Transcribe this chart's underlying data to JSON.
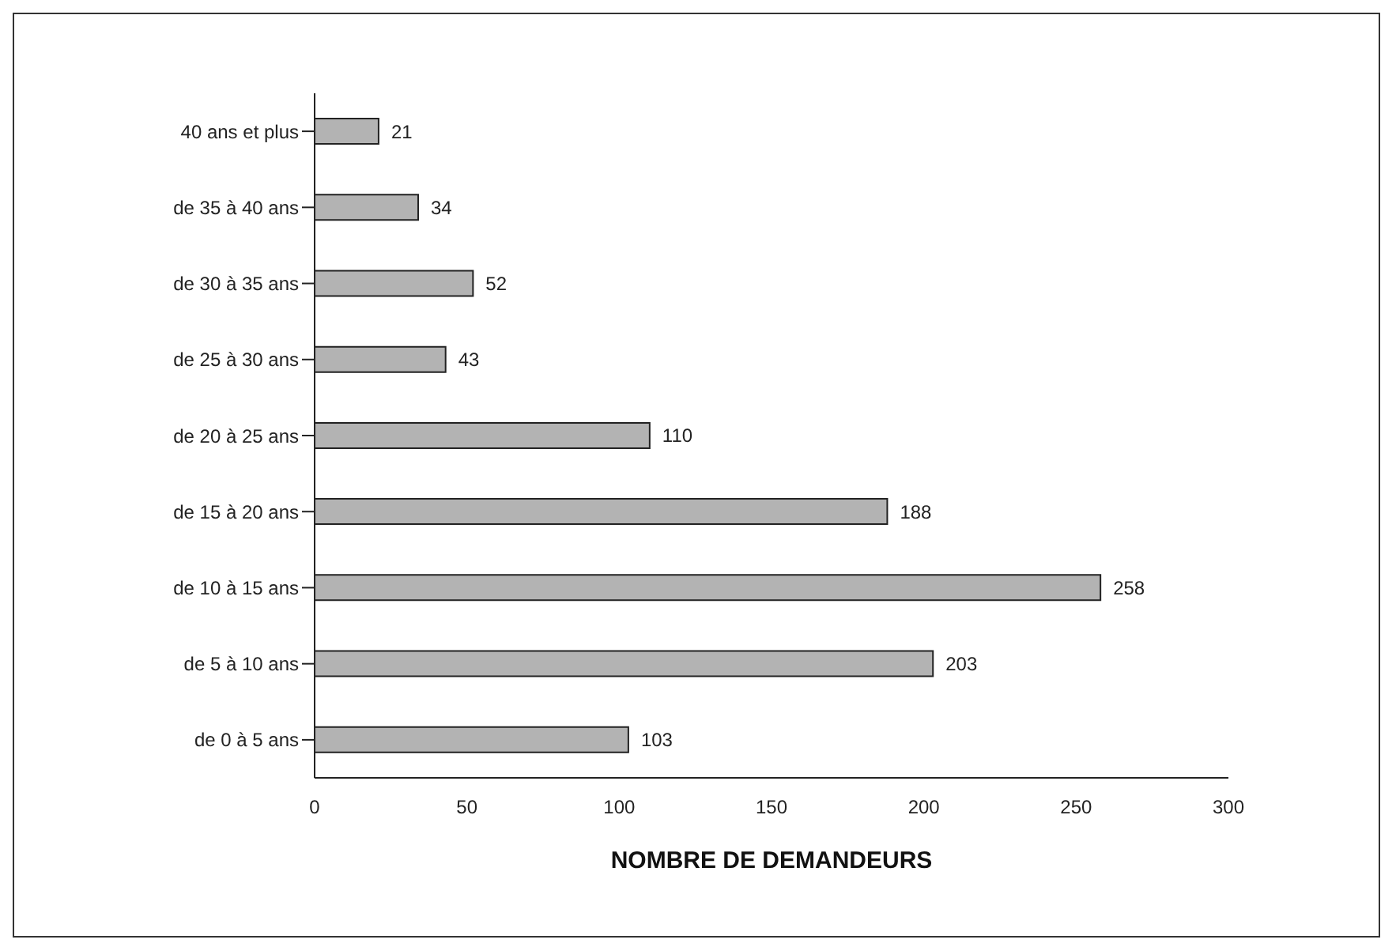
{
  "chart_data": {
    "type": "bar",
    "orientation": "horizontal",
    "xlabel": "NOMBRE DE DEMANDEURS",
    "categories": [
      "40 ans et plus",
      "de 35 à 40 ans",
      "de 30 à 35 ans",
      "de 25 à 30 ans",
      "de 20 à 25 ans",
      "de 15 à 20 ans",
      "de 10 à 15 ans",
      "de 5 à 10 ans",
      "de 0 à 5 ans"
    ],
    "values": [
      21,
      34,
      52,
      43,
      110,
      188,
      258,
      203,
      103
    ],
    "color": "#b3b3b3",
    "xlim": [
      0,
      300
    ],
    "xticks": [
      0,
      50,
      100,
      150,
      200,
      250,
      300
    ],
    "data_labels": true,
    "grid": false,
    "legend": false
  }
}
